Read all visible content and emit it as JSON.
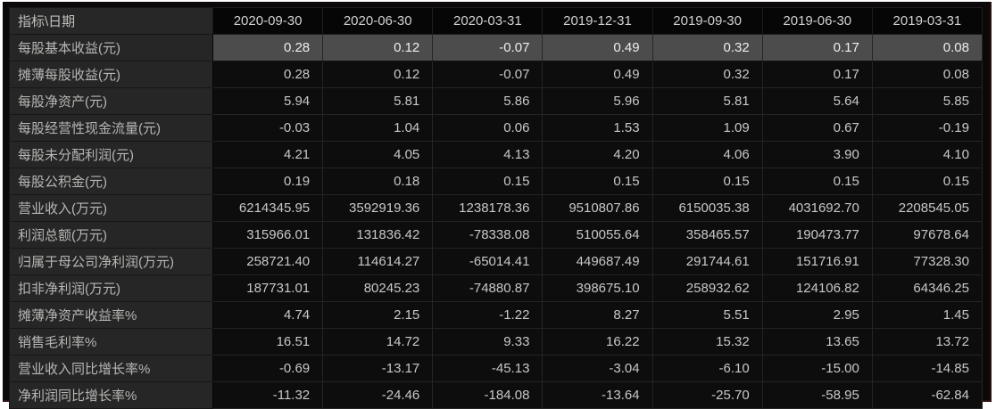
{
  "app": {
    "description_label": "financial-indicators-table",
    "colors": {
      "page_background": "#ffffff",
      "panel_background": "#0b0909",
      "label_column_background": "#262626",
      "cell_background": "#0d0d0d",
      "highlight_row_background": "#4c4c4c",
      "text_color": "#c9c8c6",
      "accent_edge": "#2e1212"
    }
  },
  "table": {
    "header_label": "指标\\日期",
    "dates": [
      "2020-09-30",
      "2020-06-30",
      "2020-03-31",
      "2019-12-31",
      "2019-09-30",
      "2019-06-30",
      "2019-03-31"
    ],
    "rows": [
      {
        "label": "每股基本收益(元)",
        "highlighted": true,
        "values": [
          "0.28",
          "0.12",
          "-0.07",
          "0.49",
          "0.32",
          "0.17",
          "0.08"
        ]
      },
      {
        "label": "摊薄每股收益(元)",
        "highlighted": false,
        "values": [
          "0.28",
          "0.12",
          "-0.07",
          "0.49",
          "0.32",
          "0.17",
          "0.08"
        ]
      },
      {
        "label": "每股净资产(元)",
        "highlighted": false,
        "values": [
          "5.94",
          "5.81",
          "5.86",
          "5.96",
          "5.81",
          "5.64",
          "5.85"
        ]
      },
      {
        "label": "每股经营性现金流量(元)",
        "highlighted": false,
        "values": [
          "-0.03",
          "1.04",
          "0.06",
          "1.53",
          "1.09",
          "0.67",
          "-0.19"
        ]
      },
      {
        "label": "每股未分配利润(元)",
        "highlighted": false,
        "values": [
          "4.21",
          "4.05",
          "4.13",
          "4.20",
          "4.06",
          "3.90",
          "4.10"
        ]
      },
      {
        "label": "每股公积金(元)",
        "highlighted": false,
        "values": [
          "0.19",
          "0.18",
          "0.15",
          "0.15",
          "0.15",
          "0.15",
          "0.15"
        ]
      },
      {
        "label": "营业收入(万元)",
        "highlighted": false,
        "values": [
          "6214345.95",
          "3592919.36",
          "1238178.36",
          "9510807.86",
          "6150035.38",
          "4031692.70",
          "2208545.05"
        ]
      },
      {
        "label": "利润总额(万元)",
        "highlighted": false,
        "values": [
          "315966.01",
          "131836.42",
          "-78338.08",
          "510055.64",
          "358465.57",
          "190473.77",
          "97678.64"
        ]
      },
      {
        "label": "归属于母公司净利润(万元)",
        "highlighted": false,
        "values": [
          "258721.40",
          "114614.27",
          "-65014.41",
          "449687.49",
          "291744.61",
          "151716.91",
          "77328.30"
        ]
      },
      {
        "label": "扣非净利润(万元)",
        "highlighted": false,
        "values": [
          "187731.01",
          "80245.23",
          "-74880.87",
          "398675.10",
          "258932.62",
          "124106.82",
          "64346.25"
        ]
      },
      {
        "label": "摊薄净资产收益率%",
        "highlighted": false,
        "values": [
          "4.74",
          "2.15",
          "-1.22",
          "8.27",
          "5.51",
          "2.95",
          "1.45"
        ]
      },
      {
        "label": "销售毛利率%",
        "highlighted": false,
        "values": [
          "16.51",
          "14.72",
          "9.33",
          "16.22",
          "15.32",
          "13.65",
          "13.72"
        ]
      },
      {
        "label": "营业收入同比增长率%",
        "highlighted": false,
        "values": [
          "-0.69",
          "-13.17",
          "-45.13",
          "-3.04",
          "-6.10",
          "-15.00",
          "-14.85"
        ]
      },
      {
        "label": "净利润同比增长率%",
        "highlighted": false,
        "values": [
          "-11.32",
          "-24.46",
          "-184.08",
          "-13.64",
          "-25.70",
          "-58.95",
          "-62.84"
        ]
      }
    ]
  }
}
